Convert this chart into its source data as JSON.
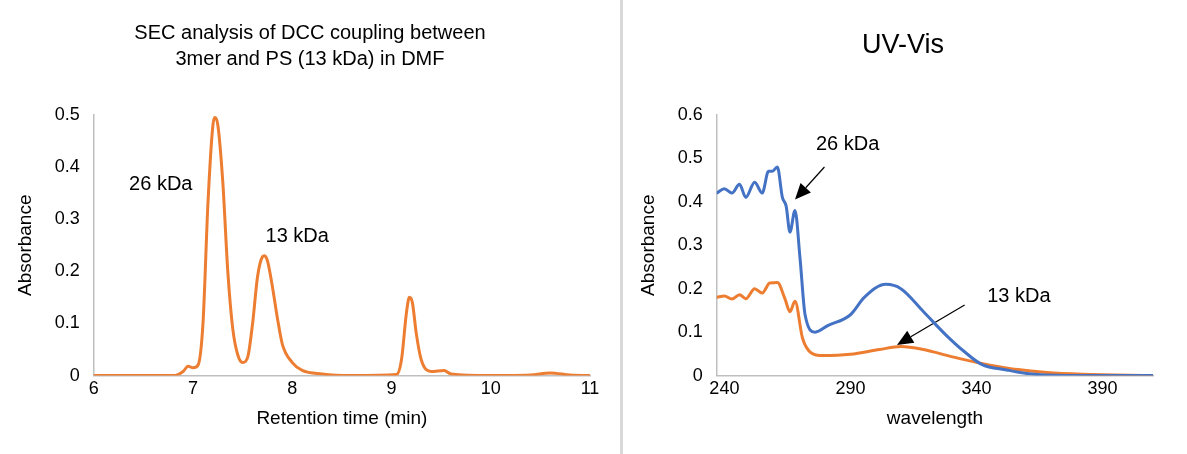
{
  "chart_data": [
    {
      "type": "line",
      "title": "SEC analysis of DCC coupling between 3mer and PS (13 kDa) in DMF",
      "xlabel": "Retention time (min)",
      "ylabel": "Absorbance",
      "xlim": [
        6,
        11
      ],
      "xticks": [
        6,
        7,
        8,
        9,
        10,
        11
      ],
      "ylim": [
        0,
        0.5
      ],
      "yticks": [
        0,
        0.1,
        0.2,
        0.3,
        0.4,
        0.5
      ],
      "grid": false,
      "legend": false,
      "marker": "none",
      "line_style": "solid",
      "annotations": [
        "26 kDa",
        "13 kDa"
      ],
      "series": [
        {
          "color": "#ed7d31",
          "x": [
            6,
            6.8,
            6.9,
            6.95,
            7.0,
            7.05,
            7.1,
            7.15,
            7.2,
            7.22,
            7.25,
            7.3,
            7.35,
            7.4,
            7.45,
            7.5,
            7.55,
            7.6,
            7.65,
            7.7,
            7.72,
            7.75,
            7.8,
            7.85,
            7.9,
            8.0,
            8.1,
            8.3,
            8.6,
            9.05,
            9.1,
            9.15,
            9.18,
            9.21,
            9.25,
            9.3,
            9.4,
            9.53,
            9.6,
            10.0,
            10.4,
            10.6,
            10.8,
            11
          ],
          "values": [
            0,
            0,
            0.008,
            0.018,
            0.015,
            0.02,
            0.1,
            0.33,
            0.48,
            0.495,
            0.48,
            0.37,
            0.2,
            0.09,
            0.04,
            0.025,
            0.035,
            0.1,
            0.19,
            0.228,
            0.23,
            0.22,
            0.17,
            0.11,
            0.06,
            0.025,
            0.01,
            0.003,
            0,
            0.002,
            0.03,
            0.12,
            0.15,
            0.14,
            0.08,
            0.03,
            0.008,
            0.01,
            0.003,
            0,
            0.001,
            0.005,
            0.001,
            0
          ]
        }
      ]
    },
    {
      "type": "line",
      "title": "UV-Vis",
      "xlabel": "wavelength",
      "ylabel": "Absorbance",
      "xlim": [
        237,
        410
      ],
      "xticks": [
        240,
        290,
        340,
        390
      ],
      "ylim": [
        0,
        0.6
      ],
      "yticks": [
        0,
        0.1,
        0.2,
        0.3,
        0.4,
        0.5,
        0.6
      ],
      "grid": false,
      "legend": false,
      "marker": "none",
      "line_style": "solid",
      "annotations": [
        "26 kDa",
        "13 kDa"
      ],
      "series": [
        {
          "color": "#4472c4",
          "x": [
            237,
            240,
            243,
            246,
            248.5,
            252,
            255,
            257.5,
            259,
            261,
            263,
            264.5,
            266,
            268,
            270,
            272,
            276,
            281,
            290,
            295.5,
            304,
            310,
            319,
            327.6,
            335,
            342,
            352,
            361,
            375,
            410
          ],
          "values": [
            0.42,
            0.43,
            0.42,
            0.44,
            0.41,
            0.445,
            0.42,
            0.47,
            0.47,
            0.48,
            0.41,
            0.39,
            0.33,
            0.38,
            0.27,
            0.14,
            0.1,
            0.115,
            0.14,
            0.18,
            0.21,
            0.2,
            0.147,
            0.095,
            0.056,
            0.026,
            0.013,
            0.004,
            0,
            0
          ]
        },
        {
          "color": "#ed7d31",
          "x": [
            237,
            240,
            243,
            246,
            248.5,
            252,
            255,
            258,
            261,
            264,
            266,
            268,
            271,
            274.5,
            279,
            290,
            301.5,
            310,
            319,
            330.5,
            342,
            353.6,
            368,
            382,
            410
          ],
          "values": [
            0.18,
            0.183,
            0.176,
            0.186,
            0.177,
            0.2,
            0.19,
            0.213,
            0.214,
            0.177,
            0.147,
            0.171,
            0.086,
            0.052,
            0.046,
            0.049,
            0.06,
            0.067,
            0.06,
            0.043,
            0.028,
            0.016,
            0.007,
            0.003,
            0
          ]
        }
      ]
    }
  ]
}
